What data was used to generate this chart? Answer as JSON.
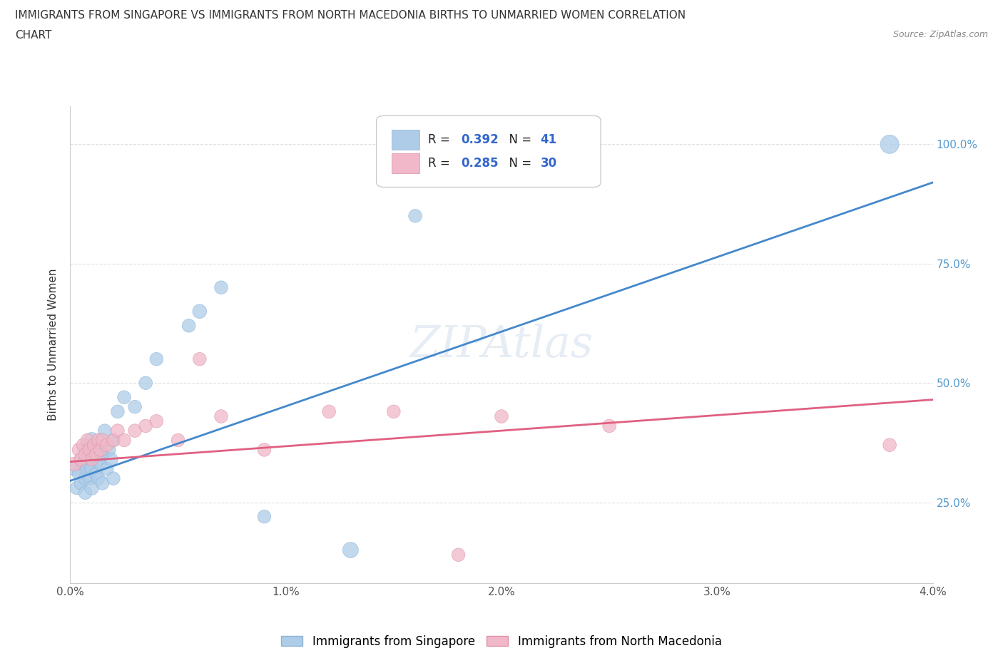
{
  "title_line1": "IMMIGRANTS FROM SINGAPORE VS IMMIGRANTS FROM NORTH MACEDONIA BIRTHS TO UNMARRIED WOMEN CORRELATION",
  "title_line2": "CHART",
  "source": "Source: ZipAtlas.com",
  "ylabel": "Births to Unmarried Women",
  "x_min": 0.0,
  "x_max": 0.04,
  "y_min": 0.08,
  "y_max": 1.08,
  "x_ticks": [
    0.0,
    0.005,
    0.01,
    0.015,
    0.02,
    0.025,
    0.03,
    0.035,
    0.04
  ],
  "x_tick_labels": [
    "0.0%",
    "",
    "1.0%",
    "",
    "2.0%",
    "",
    "3.0%",
    "",
    "4.0%"
  ],
  "y_ticks": [
    0.25,
    0.5,
    0.75,
    1.0
  ],
  "y_tick_labels": [
    "25.0%",
    "50.0%",
    "75.0%",
    "100.0%"
  ],
  "legend_entries": [
    {
      "label": "Immigrants from Singapore",
      "color": "#a8c8f0",
      "R": "0.392",
      "N": "41"
    },
    {
      "label": "Immigrants from North Macedonia",
      "color": "#f0a8b8",
      "R": "0.285",
      "N": "30"
    }
  ],
  "trend_singapore_color": "#4488cc",
  "trend_north_mac_color": "#e06080",
  "background_color": "#ffffff",
  "grid_color": "#e0e0e0",
  "singapore_x": [
    0.0002,
    0.0003,
    0.0004,
    0.0005,
    0.0005,
    0.0006,
    0.0007,
    0.0007,
    0.0007,
    0.0008,
    0.0008,
    0.0009,
    0.0009,
    0.001,
    0.001,
    0.001,
    0.0012,
    0.0012,
    0.0013,
    0.0013,
    0.0014,
    0.0015,
    0.0015,
    0.0016,
    0.0017,
    0.0018,
    0.0019,
    0.002,
    0.002,
    0.0022,
    0.0025,
    0.003,
    0.0035,
    0.004,
    0.0055,
    0.006,
    0.007,
    0.009,
    0.013,
    0.016,
    0.038
  ],
  "singapore_y": [
    0.32,
    0.28,
    0.31,
    0.29,
    0.34,
    0.33,
    0.27,
    0.3,
    0.36,
    0.32,
    0.35,
    0.3,
    0.33,
    0.28,
    0.32,
    0.38,
    0.31,
    0.36,
    0.3,
    0.34,
    0.33,
    0.29,
    0.35,
    0.4,
    0.32,
    0.36,
    0.34,
    0.3,
    0.38,
    0.44,
    0.47,
    0.45,
    0.5,
    0.55,
    0.62,
    0.65,
    0.7,
    0.22,
    0.15,
    0.85,
    1.0
  ],
  "singapore_sizes": [
    200,
    180,
    180,
    180,
    180,
    180,
    180,
    180,
    180,
    180,
    180,
    180,
    180,
    200,
    200,
    250,
    180,
    180,
    180,
    180,
    180,
    180,
    180,
    180,
    180,
    180,
    180,
    180,
    180,
    180,
    180,
    180,
    180,
    180,
    180,
    200,
    180,
    180,
    250,
    180,
    350
  ],
  "north_mac_x": [
    0.0002,
    0.0004,
    0.0005,
    0.0006,
    0.0007,
    0.0008,
    0.0009,
    0.001,
    0.0011,
    0.0012,
    0.0013,
    0.0014,
    0.0015,
    0.0017,
    0.002,
    0.0022,
    0.0025,
    0.003,
    0.0035,
    0.004,
    0.005,
    0.006,
    0.007,
    0.009,
    0.012,
    0.015,
    0.018,
    0.02,
    0.025,
    0.038
  ],
  "north_mac_y": [
    0.33,
    0.36,
    0.34,
    0.37,
    0.35,
    0.38,
    0.36,
    0.34,
    0.37,
    0.35,
    0.38,
    0.36,
    0.38,
    0.37,
    0.38,
    0.4,
    0.38,
    0.4,
    0.41,
    0.42,
    0.38,
    0.55,
    0.43,
    0.36,
    0.44,
    0.44,
    0.14,
    0.43,
    0.41,
    0.37
  ],
  "north_mac_sizes": [
    200,
    180,
    180,
    180,
    180,
    180,
    180,
    180,
    180,
    180,
    180,
    180,
    180,
    180,
    180,
    180,
    180,
    180,
    180,
    180,
    180,
    180,
    180,
    180,
    180,
    180,
    180,
    180,
    180,
    180
  ],
  "trend_sg_x0": 0.0,
  "trend_sg_x1": 0.04,
  "trend_sg_y0": 0.295,
  "trend_sg_y1": 0.92,
  "trend_nm_x0": 0.0,
  "trend_nm_x1": 0.04,
  "trend_nm_y0": 0.335,
  "trend_nm_y1": 0.465
}
